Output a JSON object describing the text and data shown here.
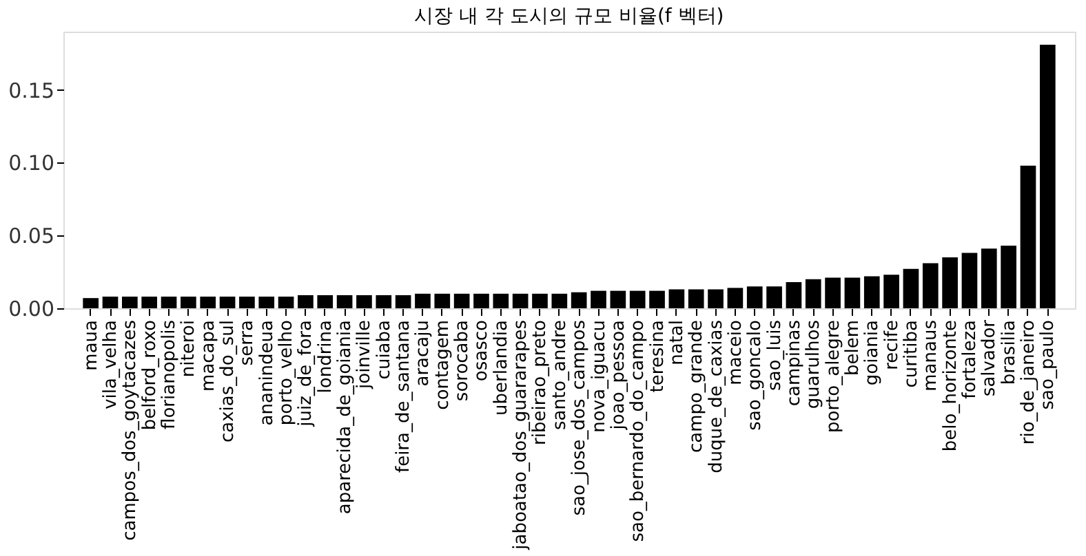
{
  "chart_data": {
    "type": "bar",
    "title": "시장 내 각 도시의 규모 비율(f 벡터)",
    "categories": [
      "maua",
      "vila_velha",
      "campos_dos_goytacazes",
      "belford_roxo",
      "florianopolis",
      "niteroi",
      "macapa",
      "caxias_do_sul",
      "serra",
      "ananindeua",
      "porto_velho",
      "juiz_de_fora",
      "londrina",
      "aparecida_de_goiania",
      "joinville",
      "cuiaba",
      "feira_de_santana",
      "aracaju",
      "contagem",
      "sorocaba",
      "osasco",
      "uberlandia",
      "jaboatao_dos_guararapes",
      "ribeirao_preto",
      "santo_andre",
      "sao_jose_dos_campos",
      "nova_iguacu",
      "joao_pessoa",
      "sao_bernardo_do_campo",
      "teresina",
      "natal",
      "campo_grande",
      "duque_de_caxias",
      "maceio",
      "sao_goncalo",
      "sao_luis",
      "campinas",
      "guarulhos",
      "porto_alegre",
      "belem",
      "goiania",
      "recife",
      "curitiba",
      "manaus",
      "belo_horizonte",
      "fortaleza",
      "salvador",
      "brasilia",
      "rio_de_janeiro",
      "sao_paulo"
    ],
    "values": [
      0.007,
      0.008,
      0.008,
      0.008,
      0.008,
      0.008,
      0.008,
      0.008,
      0.008,
      0.008,
      0.008,
      0.009,
      0.009,
      0.009,
      0.009,
      0.009,
      0.009,
      0.01,
      0.01,
      0.01,
      0.01,
      0.01,
      0.01,
      0.01,
      0.01,
      0.011,
      0.012,
      0.012,
      0.012,
      0.012,
      0.013,
      0.013,
      0.013,
      0.014,
      0.015,
      0.015,
      0.018,
      0.02,
      0.021,
      0.021,
      0.022,
      0.023,
      0.027,
      0.031,
      0.035,
      0.038,
      0.041,
      0.043,
      0.098,
      0.181
    ],
    "color": "#000000",
    "ylim": [
      0,
      0.19
    ],
    "yticks": [
      {
        "value": 0,
        "label": "0.00"
      },
      {
        "value": 0.05,
        "label": "0.05"
      },
      {
        "value": 0.1,
        "label": "0.10"
      },
      {
        "value": 0.15,
        "label": "0.15"
      }
    ],
    "grid": false
  }
}
